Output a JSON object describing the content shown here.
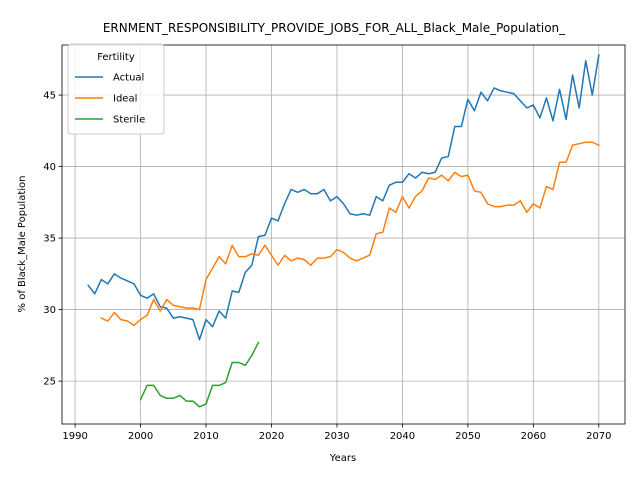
{
  "chart_data": {
    "type": "line",
    "title": "ERNMENT_RESPONSIBILITY_PROVIDE_JOBS_FOR_ALL_Black_Male_Population_",
    "xlabel": "Years",
    "ylabel": "% of Black_Male Population",
    "xlim": [
      1988,
      2074
    ],
    "ylim": [
      22,
      48.5
    ],
    "xticks": [
      1990,
      2000,
      2010,
      2020,
      2030,
      2040,
      2050,
      2060,
      2070
    ],
    "yticks": [
      25,
      30,
      35,
      40,
      45
    ],
    "grid": true,
    "legend": {
      "title": "Fertility",
      "position": "top-left"
    },
    "series": [
      {
        "name": "Actual",
        "color": "#1f77b4",
        "x": [
          1992,
          1993,
          1994,
          1995,
          1996,
          1997,
          1998,
          1999,
          2000,
          2001,
          2002,
          2003,
          2004,
          2005,
          2006,
          2007,
          2008,
          2009,
          2010,
          2011,
          2012,
          2013,
          2014,
          2015,
          2016,
          2017,
          2018,
          2019,
          2020,
          2021,
          2022,
          2023,
          2024,
          2025,
          2026,
          2027,
          2028,
          2029,
          2030,
          2031,
          2032,
          2033,
          2034,
          2035,
          2036,
          2037,
          2038,
          2039,
          2040,
          2041,
          2042,
          2043,
          2044,
          2045,
          2046,
          2047,
          2048,
          2049,
          2050,
          2051,
          2052,
          2053,
          2054,
          2055,
          2056,
          2057,
          2058,
          2059,
          2060,
          2061,
          2062,
          2063,
          2064,
          2065,
          2066,
          2067,
          2068,
          2069,
          2070
        ],
        "y": [
          31.7,
          31.1,
          32.1,
          31.8,
          32.5,
          32.2,
          32.0,
          31.8,
          31.0,
          30.8,
          31.1,
          30.2,
          30.1,
          29.4,
          29.5,
          29.4,
          29.3,
          27.9,
          29.3,
          28.8,
          29.9,
          29.4,
          31.3,
          31.2,
          32.6,
          33.1,
          35.1,
          35.2,
          36.4,
          36.2,
          37.4,
          38.4,
          38.2,
          38.4,
          38.1,
          38.1,
          38.4,
          37.6,
          37.9,
          37.4,
          36.7,
          36.6,
          36.7,
          36.6,
          37.9,
          37.6,
          38.7,
          38.9,
          38.9,
          39.5,
          39.2,
          39.6,
          39.5,
          39.6,
          40.6,
          40.7,
          42.8,
          42.8,
          44.7,
          43.9,
          45.2,
          44.6,
          45.5,
          45.3,
          45.2,
          45.1,
          44.6,
          44.1,
          44.3,
          43.4,
          44.8,
          43.2,
          45.4,
          43.3,
          46.4,
          44.1,
          47.4,
          45.0,
          47.8
        ]
      },
      {
        "name": "Ideal",
        "color": "#ff7f0e",
        "x": [
          1994,
          1995,
          1996,
          1997,
          1998,
          1999,
          2000,
          2001,
          2002,
          2003,
          2004,
          2005,
          2006,
          2007,
          2008,
          2009,
          2010,
          2011,
          2012,
          2013,
          2014,
          2015,
          2016,
          2017,
          2018,
          2019,
          2020,
          2021,
          2022,
          2023,
          2024,
          2025,
          2026,
          2027,
          2028,
          2029,
          2030,
          2031,
          2032,
          2033,
          2034,
          2035,
          2036,
          2037,
          2038,
          2039,
          2040,
          2041,
          2042,
          2043,
          2044,
          2045,
          2046,
          2047,
          2048,
          2049,
          2050,
          2051,
          2052,
          2053,
          2054,
          2055,
          2056,
          2057,
          2058,
          2059,
          2060,
          2061,
          2062,
          2063,
          2064,
          2065,
          2066,
          2067,
          2068,
          2069,
          2070
        ],
        "y": [
          29.4,
          29.2,
          29.8,
          29.3,
          29.2,
          28.9,
          29.3,
          29.6,
          30.7,
          29.9,
          30.7,
          30.3,
          30.2,
          30.1,
          30.1,
          30.0,
          32.1,
          32.9,
          33.7,
          33.2,
          34.5,
          33.7,
          33.7,
          33.9,
          33.8,
          34.5,
          33.8,
          33.1,
          33.8,
          33.4,
          33.6,
          33.5,
          33.1,
          33.6,
          33.6,
          33.7,
          34.2,
          34.0,
          33.6,
          33.4,
          33.6,
          33.8,
          35.3,
          35.4,
          37.1,
          36.8,
          37.9,
          37.1,
          37.9,
          38.3,
          39.2,
          39.1,
          39.4,
          39.0,
          39.6,
          39.3,
          39.4,
          38.3,
          38.2,
          37.4,
          37.2,
          37.2,
          37.3,
          37.3,
          37.6,
          36.8,
          37.4,
          37.1,
          38.6,
          38.4,
          40.3,
          40.3,
          41.5,
          41.6,
          41.7,
          41.7,
          41.5
        ]
      },
      {
        "name": "Sterile",
        "color": "#2ca02c",
        "x": [
          2000,
          2001,
          2002,
          2003,
          2004,
          2005,
          2006,
          2007,
          2008,
          2009,
          2010,
          2011,
          2012,
          2013,
          2014,
          2015,
          2016,
          2017,
          2018
        ],
        "y": [
          23.7,
          24.7,
          24.7,
          24.0,
          23.8,
          23.8,
          24.0,
          23.6,
          23.6,
          23.2,
          23.4,
          24.7,
          24.7,
          24.9,
          26.3,
          26.3,
          26.1,
          26.8,
          27.7
        ]
      }
    ]
  }
}
